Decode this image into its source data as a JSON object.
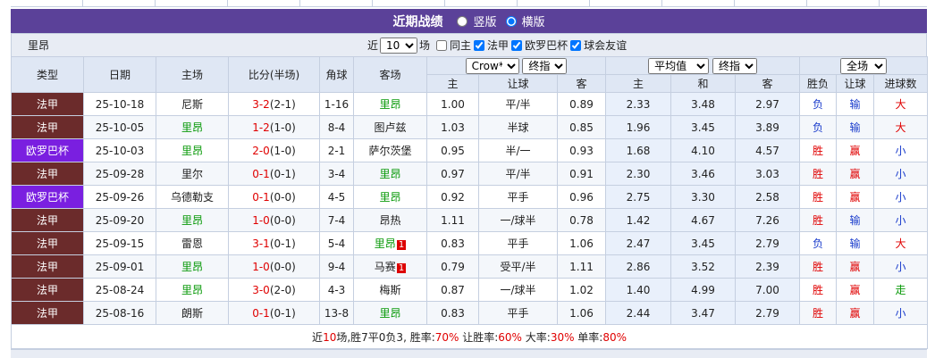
{
  "header": {
    "title": "近期战绩",
    "view_options": [
      {
        "label": "竖版",
        "checked": false
      },
      {
        "label": "横版",
        "checked": true
      }
    ]
  },
  "filter": {
    "team": "里昂",
    "prefix": "近",
    "count": "10",
    "suffix": "场",
    "options": [
      {
        "label": "同主",
        "checked": false
      },
      {
        "label": "法甲",
        "checked": true
      },
      {
        "label": "欧罗巴杯",
        "checked": true
      },
      {
        "label": "球会友谊",
        "checked": true
      }
    ]
  },
  "table": {
    "columns": [
      "类型",
      "日期",
      "主场",
      "比分(半场)",
      "角球",
      "客场"
    ],
    "odds_company": "Crow*",
    "odds_type": "终指",
    "avg_label": "平均值",
    "avg_type": "终指",
    "result_scope": "全场",
    "subcolumns": [
      "主",
      "让球",
      "客",
      "主",
      "和",
      "客",
      "胜负",
      "让球",
      "进球数"
    ],
    "rows": [
      {
        "league": "法甲",
        "league_color": "#6b2b2b",
        "date": "25-10-18",
        "home": "尼斯",
        "score": "3-2",
        "half": "(2-1)",
        "corner": "1-16",
        "away": "里昂",
        "odds": [
          "1.00",
          "平/半",
          "0.89"
        ],
        "avg": [
          "2.33",
          "3.48",
          "2.97"
        ],
        "result": "负",
        "handicap": "输",
        "goals": "大"
      },
      {
        "league": "法甲",
        "league_color": "#6b2b2b",
        "date": "25-10-05",
        "home": "里昂",
        "score": "1-2",
        "half": "(1-0)",
        "corner": "8-4",
        "away": "图卢兹",
        "odds": [
          "1.03",
          "半球",
          "0.85"
        ],
        "avg": [
          "1.96",
          "3.45",
          "3.89"
        ],
        "result": "负",
        "handicap": "输",
        "goals": "大"
      },
      {
        "league": "欧罗巴杯",
        "league_color": "#7a1fe0",
        "date": "25-10-03",
        "home": "里昂",
        "score": "2-0",
        "half": "(1-0)",
        "corner": "2-1",
        "away": "萨尔茨堡",
        "odds": [
          "0.95",
          "半/一",
          "0.93"
        ],
        "avg": [
          "1.68",
          "4.10",
          "4.57"
        ],
        "result": "胜",
        "handicap": "赢",
        "goals": "小"
      },
      {
        "league": "法甲",
        "league_color": "#6b2b2b",
        "date": "25-09-28",
        "home": "里尔",
        "score": "0-1",
        "half": "(0-1)",
        "corner": "3-4",
        "away": "里昂",
        "odds": [
          "0.97",
          "平/半",
          "0.91"
        ],
        "avg": [
          "2.30",
          "3.46",
          "3.03"
        ],
        "result": "胜",
        "handicap": "赢",
        "goals": "小"
      },
      {
        "league": "欧罗巴杯",
        "league_color": "#7a1fe0",
        "date": "25-09-26",
        "home": "乌德勒支",
        "score": "0-1",
        "half": "(0-0)",
        "corner": "4-5",
        "away": "里昂",
        "odds": [
          "0.92",
          "平手",
          "0.96"
        ],
        "avg": [
          "2.75",
          "3.30",
          "2.58"
        ],
        "result": "胜",
        "handicap": "赢",
        "goals": "小"
      },
      {
        "league": "法甲",
        "league_color": "#6b2b2b",
        "date": "25-09-20",
        "home": "里昂",
        "score": "1-0",
        "half": "(0-0)",
        "corner": "7-4",
        "away": "昂热",
        "odds": [
          "1.11",
          "一/球半",
          "0.78"
        ],
        "avg": [
          "1.42",
          "4.67",
          "7.26"
        ],
        "result": "胜",
        "handicap": "输",
        "goals": "小"
      },
      {
        "league": "法甲",
        "league_color": "#6b2b2b",
        "date": "25-09-15",
        "home": "雷恩",
        "score": "3-1",
        "half": "(0-1)",
        "corner": "5-4",
        "away": "里昂",
        "away_red_card": "1",
        "odds": [
          "0.83",
          "平手",
          "1.06"
        ],
        "avg": [
          "2.47",
          "3.45",
          "2.79"
        ],
        "result": "负",
        "handicap": "输",
        "goals": "大"
      },
      {
        "league": "法甲",
        "league_color": "#6b2b2b",
        "date": "25-09-01",
        "home": "里昂",
        "score": "1-0",
        "half": "(0-0)",
        "corner": "9-4",
        "away": "马赛",
        "away_red_card": "1",
        "odds": [
          "0.79",
          "受平/半",
          "1.11"
        ],
        "avg": [
          "2.86",
          "3.52",
          "2.39"
        ],
        "result": "胜",
        "handicap": "赢",
        "goals": "小"
      },
      {
        "league": "法甲",
        "league_color": "#6b2b2b",
        "date": "25-08-24",
        "home": "里昂",
        "score": "3-0",
        "half": "(2-0)",
        "corner": "4-3",
        "away": "梅斯",
        "odds": [
          "0.87",
          "一/球半",
          "1.02"
        ],
        "avg": [
          "1.40",
          "4.99",
          "7.00"
        ],
        "result": "胜",
        "handicap": "赢",
        "goals": "走"
      },
      {
        "league": "法甲",
        "league_color": "#6b2b2b",
        "date": "25-08-16",
        "home": "朗斯",
        "score": "0-1",
        "half": "(0-1)",
        "corner": "13-8",
        "away": "里昂",
        "odds": [
          "0.83",
          "平手",
          "1.06"
        ],
        "avg": [
          "2.44",
          "3.47",
          "2.79"
        ],
        "result": "胜",
        "handicap": "赢",
        "goals": "小"
      }
    ]
  },
  "summary": [
    {
      "text": "近"
    },
    {
      "text": "10",
      "color": "#e00000"
    },
    {
      "text": "场,胜7平0负3, 胜率:"
    },
    {
      "text": "70%",
      "color": "#e00000"
    },
    {
      "text": " 让胜率:"
    },
    {
      "text": "60%",
      "color": "#e00000"
    },
    {
      "text": " 大率:"
    },
    {
      "text": "30%",
      "color": "#e00000"
    },
    {
      "text": " 单率:"
    },
    {
      "text": "80%",
      "color": "#e00000"
    }
  ]
}
